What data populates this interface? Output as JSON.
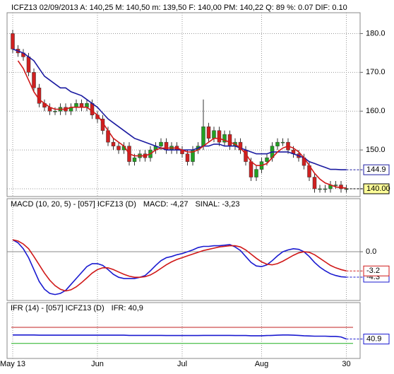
{
  "header": "ICFZ13   02/09/2013   A: 140,25   M: 140,50   m: 139,50   F: 140,00   PM: 140,22   Q: 89   %: 0.07  DIF: 0.10",
  "chart_data": [
    {
      "type": "candlestick",
      "categories": [
        "May 13",
        null,
        null,
        null,
        null,
        null,
        null,
        null,
        null,
        null,
        null,
        null,
        null,
        null,
        null,
        null,
        "Jun",
        null,
        null,
        null,
        null,
        null,
        null,
        null,
        null,
        null,
        null,
        null,
        null,
        null,
        null,
        null,
        "Jul",
        null,
        null,
        null,
        null,
        null,
        null,
        null,
        null,
        null,
        null,
        null,
        null,
        null,
        null,
        "Aug",
        null,
        null,
        null,
        null,
        null,
        null,
        null,
        null,
        null,
        null,
        null,
        null,
        null,
        null,
        null,
        "30"
      ],
      "open": [
        180,
        176,
        175,
        174,
        170,
        166,
        162,
        161,
        160,
        160,
        161,
        160,
        161,
        162,
        161,
        162,
        159,
        158,
        155,
        152,
        151,
        150,
        151,
        147,
        148,
        149,
        148,
        150,
        151,
        152,
        150,
        151,
        150,
        149,
        147,
        150,
        151,
        156,
        153,
        155,
        152,
        154,
        151,
        152,
        150,
        147,
        143,
        145,
        147,
        148,
        151,
        152,
        152,
        150,
        149,
        148,
        146,
        143,
        140,
        140,
        140,
        141,
        141,
        140
      ],
      "high": [
        181,
        177,
        176,
        175,
        171,
        167,
        163,
        162,
        161,
        162,
        162,
        162,
        163,
        163,
        163,
        163,
        160,
        159,
        156,
        153,
        152,
        152,
        152,
        149,
        150,
        150,
        151,
        152,
        153,
        153,
        152,
        152,
        151,
        150,
        151,
        152,
        163,
        157,
        156,
        156,
        155,
        155,
        153,
        153,
        151,
        148,
        146,
        148,
        149,
        152,
        153,
        153,
        153,
        151,
        150,
        149,
        147,
        144,
        141,
        141,
        142,
        142,
        142,
        141
      ],
      "low": [
        175,
        174,
        173,
        169,
        165,
        161,
        160,
        159,
        159,
        159,
        159,
        159,
        160,
        160,
        160,
        158,
        157,
        154,
        151,
        150,
        149,
        149,
        146,
        146,
        147,
        147,
        147,
        149,
        150,
        149,
        149,
        149,
        148,
        146,
        146,
        149,
        150,
        152,
        152,
        151,
        151,
        150,
        150,
        149,
        146,
        142,
        142,
        144,
        146,
        147,
        150,
        151,
        149,
        148,
        147,
        145,
        142,
        139,
        139,
        139,
        139,
        140,
        139,
        139
      ],
      "close": [
        176,
        175,
        174,
        170,
        166,
        162,
        161,
        160,
        160,
        161,
        160,
        161,
        162,
        161,
        162,
        159,
        158,
        155,
        152,
        151,
        150,
        151,
        147,
        148,
        149,
        148,
        150,
        151,
        152,
        150,
        151,
        150,
        149,
        147,
        150,
        151,
        156,
        153,
        155,
        152,
        154,
        151,
        152,
        150,
        147,
        143,
        145,
        147,
        148,
        151,
        152,
        152,
        150,
        149,
        148,
        146,
        143,
        140,
        140,
        140,
        141,
        141,
        140,
        140
      ],
      "value_labels": [
        null,
        null,
        null,
        null,
        null,
        null,
        null,
        null,
        null,
        null,
        null,
        null,
        null,
        null,
        null,
        null,
        null,
        null,
        null,
        null,
        null,
        null,
        null,
        null,
        null,
        null,
        null,
        null,
        null,
        null,
        null,
        null,
        null,
        null,
        null,
        null,
        null,
        null,
        null,
        null,
        null,
        null,
        null,
        null,
        null,
        null,
        null,
        null,
        null,
        null,
        null,
        null,
        null,
        null,
        null,
        null,
        null,
        null,
        null,
        null,
        null,
        null,
        null,
        "140.00"
      ],
      "up_color": "#22a022",
      "down_color": "#d02020",
      "label_fill": "#ffff99",
      "series": [
        {
          "color": "#1a1aa0",
          "values": [
            176,
            175.5,
            175,
            174,
            173,
            171,
            169,
            168,
            167,
            166,
            166,
            165,
            164.5,
            164,
            163,
            162,
            161,
            159.5,
            158,
            157,
            156,
            155,
            154,
            153,
            152.5,
            152,
            151.5,
            151,
            150.5,
            150,
            150,
            150,
            150,
            150,
            150,
            150.5,
            151,
            151,
            151.5,
            151.5,
            151,
            151,
            151,
            150.5,
            150,
            149.5,
            149,
            149,
            149,
            149.5,
            149.5,
            149.5,
            149.5,
            149,
            148.5,
            148,
            147,
            146.5,
            146,
            145.5,
            145,
            145,
            144.9,
            144.9
          ],
          "value_labels": [
            null,
            null,
            null,
            null,
            null,
            null,
            null,
            null,
            null,
            null,
            null,
            null,
            null,
            null,
            null,
            null,
            null,
            null,
            null,
            null,
            null,
            null,
            null,
            null,
            null,
            null,
            null,
            null,
            null,
            null,
            null,
            null,
            null,
            null,
            null,
            null,
            null,
            null,
            null,
            null,
            null,
            null,
            null,
            null,
            null,
            null,
            null,
            null,
            null,
            null,
            null,
            null,
            null,
            null,
            null,
            null,
            null,
            null,
            null,
            null,
            null,
            null,
            null,
            "144.9"
          ]
        },
        {
          "color": "#d01818",
          "values": [
            null,
            173,
            171,
            168,
            165,
            163,
            162,
            161,
            160.5,
            160.5,
            160.5,
            161,
            161,
            161,
            161,
            160,
            159,
            157,
            155,
            153,
            152,
            151,
            149,
            148.5,
            148.5,
            148.5,
            149,
            150,
            150.5,
            150.5,
            150.5,
            150.5,
            150,
            149.5,
            149.5,
            150,
            151,
            152,
            153,
            153,
            152.5,
            152,
            151.5,
            150.5,
            149,
            147,
            146,
            146,
            146.5,
            148,
            149.5,
            150.5,
            151,
            150.5,
            149.5,
            148,
            146,
            144,
            142.5,
            141.5,
            141,
            140.5,
            140.3,
            140.2
          ]
        }
      ],
      "ylim": [
        138,
        185
      ],
      "yticks": [
        {
          "value": 140,
          "label": "140.0"
        },
        {
          "value": 150,
          "label": "150.0"
        },
        {
          "value": 160,
          "label": "160.0"
        },
        {
          "value": 170,
          "label": "170.0"
        },
        {
          "value": 180,
          "label": "180.0"
        }
      ],
      "grid": true
    },
    {
      "type": "line",
      "title": "MACD (10, 20, 5)  - [057] ICFZ13 (D)",
      "series": [
        {
          "name": "MACD: -4,27",
          "color": "#1a1ad0",
          "values": [
            2,
            1.5,
            0.5,
            -1,
            -3,
            -5,
            -6.3,
            -7,
            -7.2,
            -7,
            -6.5,
            -5.5,
            -4.5,
            -3.5,
            -2.5,
            -2,
            -2,
            -2.3,
            -3,
            -3.8,
            -4.3,
            -4.5,
            -4.5,
            -4.5,
            -4.3,
            -4,
            -3.2,
            -2.3,
            -1.5,
            -1,
            -0.8,
            -0.5,
            -0.3,
            0,
            0.3,
            0.7,
            0.9,
            0.9,
            1,
            1,
            1.1,
            1.2,
            0.8,
            0.2,
            -0.8,
            -1.8,
            -2.4,
            -2.5,
            -2.2,
            -1.5,
            -0.7,
            0,
            0.3,
            0.5,
            0.4,
            0,
            -0.8,
            -1.8,
            -2.6,
            -3.2,
            -3.7,
            -4,
            -4.2,
            -4.27
          ],
          "value_labels": [
            null,
            null,
            null,
            null,
            null,
            null,
            null,
            null,
            null,
            null,
            null,
            null,
            null,
            null,
            null,
            null,
            null,
            null,
            null,
            null,
            null,
            null,
            null,
            null,
            null,
            null,
            null,
            null,
            null,
            null,
            null,
            null,
            null,
            null,
            null,
            null,
            null,
            null,
            null,
            null,
            null,
            null,
            null,
            null,
            null,
            null,
            null,
            null,
            null,
            null,
            null,
            null,
            null,
            null,
            null,
            null,
            null,
            null,
            null,
            null,
            null,
            null,
            null,
            "-4.3"
          ]
        },
        {
          "name": "SINAL: -3,23",
          "color": "#d01818",
          "values": [
            2,
            1.8,
            1.3,
            0.5,
            -0.8,
            -2.2,
            -3.6,
            -4.8,
            -5.7,
            -6.3,
            -6.6,
            -6.4,
            -5.9,
            -5.2,
            -4.4,
            -3.6,
            -3,
            -2.7,
            -2.7,
            -3,
            -3.4,
            -3.8,
            -4.1,
            -4.3,
            -4.3,
            -4.2,
            -3.9,
            -3.4,
            -2.8,
            -2.2,
            -1.7,
            -1.3,
            -1,
            -0.7,
            -0.4,
            -0.1,
            0.2,
            0.4,
            0.6,
            0.8,
            0.9,
            1,
            1,
            0.8,
            0.3,
            -0.4,
            -1.1,
            -1.7,
            -2.1,
            -2.2,
            -2,
            -1.6,
            -1.1,
            -0.6,
            -0.2,
            0,
            -0.1,
            -0.5,
            -1.1,
            -1.7,
            -2.3,
            -2.7,
            -3,
            -3.23
          ],
          "value_labels": [
            null,
            null,
            null,
            null,
            null,
            null,
            null,
            null,
            null,
            null,
            null,
            null,
            null,
            null,
            null,
            null,
            null,
            null,
            null,
            null,
            null,
            null,
            null,
            null,
            null,
            null,
            null,
            null,
            null,
            null,
            null,
            null,
            null,
            null,
            null,
            null,
            null,
            null,
            null,
            null,
            null,
            null,
            null,
            null,
            null,
            null,
            null,
            null,
            null,
            null,
            null,
            null,
            null,
            null,
            null,
            null,
            null,
            null,
            null,
            null,
            null,
            null,
            null,
            "-3.2"
          ]
        }
      ],
      "ylim": [
        -7.6,
        6.9
      ],
      "yticks": [
        {
          "value": 0,
          "label": "0.0"
        }
      ],
      "grid": true
    },
    {
      "type": "line",
      "title": "IFR (14)  - [057] ICFZ13 (D)",
      "series": [
        {
          "name": "IFR: 40,9",
          "color": "#1a1ad0",
          "values": [
            51,
            51,
            51,
            51,
            51,
            50.5,
            50.5,
            50.5,
            50.5,
            50.5,
            50.5,
            50.5,
            50.5,
            50.5,
            50.5,
            50.5,
            50.5,
            50.5,
            50.5,
            50.5,
            50.5,
            50.5,
            50,
            50,
            50,
            50,
            50,
            50,
            50,
            49.5,
            49.5,
            49.5,
            49.5,
            49.5,
            49.5,
            49.5,
            50,
            50,
            50,
            50,
            50,
            50,
            49.5,
            49.5,
            49.5,
            49,
            49,
            49,
            49.5,
            50,
            50.5,
            51,
            51,
            50.5,
            50,
            49,
            48.5,
            48,
            48,
            48,
            47.5,
            47.5,
            46,
            40.9
          ],
          "value_labels": [
            null,
            null,
            null,
            null,
            null,
            null,
            null,
            null,
            null,
            null,
            null,
            null,
            null,
            null,
            null,
            null,
            null,
            null,
            null,
            null,
            null,
            null,
            null,
            null,
            null,
            null,
            null,
            null,
            null,
            null,
            null,
            null,
            null,
            null,
            null,
            null,
            null,
            null,
            null,
            null,
            null,
            null,
            null,
            null,
            null,
            null,
            null,
            null,
            null,
            null,
            null,
            null,
            null,
            null,
            null,
            null,
            null,
            null,
            null,
            null,
            null,
            null,
            null,
            "40.9"
          ]
        }
      ],
      "hlines": [
        {
          "value": 70,
          "color": "#c02020"
        },
        {
          "value": 30,
          "color": "#20b020"
        }
      ],
      "ylim": [
        5,
        105
      ],
      "grid": true
    }
  ]
}
